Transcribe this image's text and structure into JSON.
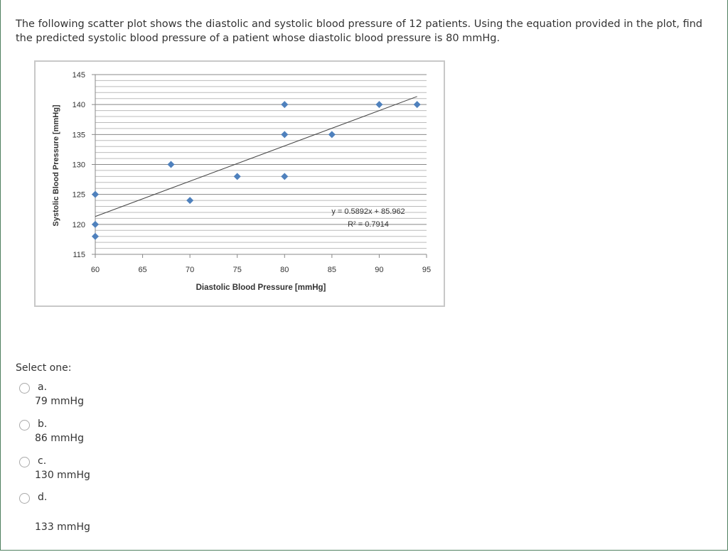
{
  "question": "The following scatter plot shows the diastolic and systolic blood pressure of 12 patients. Using the equation provided in the plot, find the predicted systolic blood pressure of a patient whose diastolic blood pressure is 80 mmHg.",
  "chart_data": {
    "type": "scatter",
    "xlabel": "Diastolic Blood Pressure [mmHg]",
    "ylabel": "Systolic Blood Pressure [mmHg]",
    "xlim": [
      60,
      95
    ],
    "ylim": [
      115,
      145
    ],
    "xticks": [
      60,
      65,
      70,
      75,
      80,
      85,
      90,
      95
    ],
    "yticks": [
      115,
      120,
      125,
      130,
      135,
      140,
      145
    ],
    "grid": "horizontal, minor every 1",
    "marker_color": "#4f81bd",
    "points": [
      [
        60,
        125
      ],
      [
        60,
        120
      ],
      [
        60,
        118
      ],
      [
        68,
        130
      ],
      [
        70,
        124
      ],
      [
        75,
        128
      ],
      [
        80,
        140
      ],
      [
        80,
        135
      ],
      [
        80,
        128
      ],
      [
        85,
        135
      ],
      [
        90,
        140
      ],
      [
        94,
        140
      ]
    ],
    "trendline": {
      "slope": 0.5892,
      "intercept": 85.962,
      "x_range": [
        60,
        94
      ]
    },
    "equation": "y = 0.5892x + 85.962",
    "r2": "R² = 0.7914"
  },
  "select_label": "Select one:",
  "options": [
    {
      "letter": "a.",
      "text": "79 mmHg"
    },
    {
      "letter": "b.",
      "text": "86 mmHg"
    },
    {
      "letter": "c.",
      "text": "130 mmHg"
    },
    {
      "letter": "d.",
      "text": "133 mmHg"
    }
  ]
}
